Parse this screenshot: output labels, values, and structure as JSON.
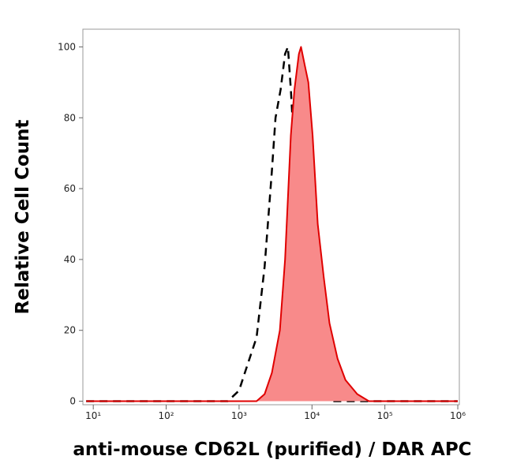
{
  "chart_data": {
    "type": "histogram-overlay",
    "x_axis_label": "anti-mouse CD62L (purified) / DAR APC",
    "y_axis_label": "Relative Cell Count",
    "x_log_scale": true,
    "xlim": [
      7.2,
      1050000
    ],
    "xticks": [
      {
        "value": 10,
        "label": "10¹"
      },
      {
        "value": 100,
        "label": "10²"
      },
      {
        "value": 1000,
        "label": "10³"
      },
      {
        "value": 10000,
        "label": "10⁴"
      },
      {
        "value": 100000,
        "label": "10⁵"
      },
      {
        "value": 1000000,
        "label": "10⁶"
      }
    ],
    "ylim": [
      -1,
      105
    ],
    "yticks": [
      0,
      20,
      40,
      60,
      80,
      100
    ],
    "series": [
      {
        "color": "#000000",
        "dashed": true,
        "filled": false,
        "x": [
          8,
          700,
          1000,
          1200,
          1740,
          2240,
          2820,
          3160,
          3720,
          4270,
          4680,
          5130,
          5750,
          6460,
          7240,
          8710,
          10500,
          13500,
          17000,
          1000000
        ],
        "values": [
          0,
          0,
          3,
          8,
          18,
          38,
          65,
          80,
          88,
          98,
          100,
          88,
          70,
          45,
          25,
          10,
          5,
          2,
          0,
          0
        ]
      },
      {
        "color": "#e00000",
        "fill": "#f88a8a",
        "dashed": false,
        "filled": true,
        "x": [
          8,
          1740,
          2240,
          2820,
          3630,
          4270,
          5130,
          5750,
          6610,
          7080,
          7940,
          8910,
          10200,
          12000,
          14500,
          17400,
          22400,
          28800,
          41700,
          60300,
          1000000
        ],
        "values": [
          0,
          0,
          2,
          8,
          20,
          40,
          75,
          88,
          98,
          100,
          95,
          90,
          75,
          50,
          35,
          22,
          12,
          6,
          2,
          0,
          0
        ]
      }
    ]
  }
}
